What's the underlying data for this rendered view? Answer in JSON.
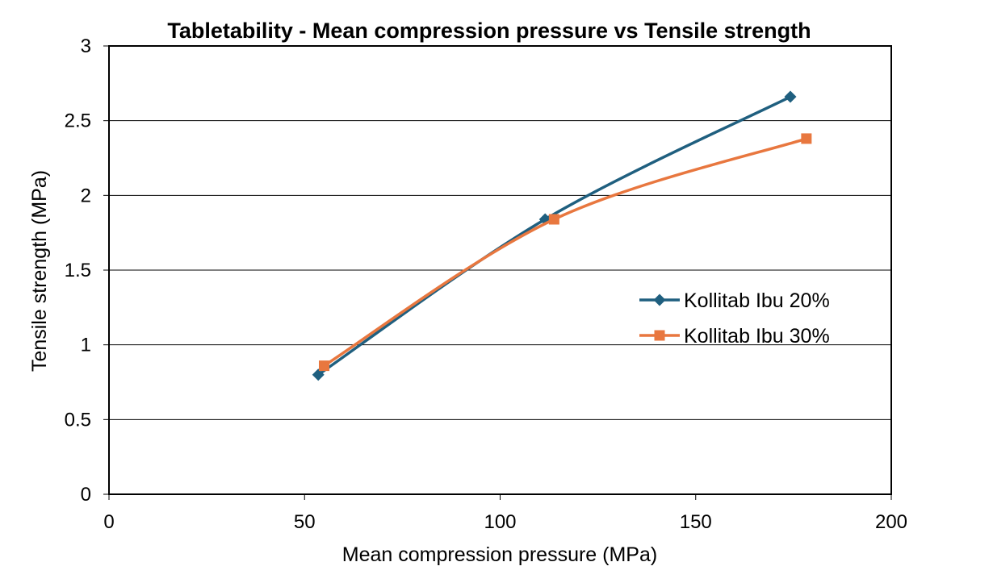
{
  "chart_data": {
    "type": "line",
    "title": "Tabletability - Mean compression pressure vs Tensile strength",
    "xlabel": "Mean compression pressure (MPa)",
    "ylabel": "Tensile strength (MPa)",
    "xlim": [
      0,
      200
    ],
    "ylim": [
      0,
      3
    ],
    "x_ticks": [
      "0",
      "50",
      "100",
      "150",
      "200"
    ],
    "y_ticks": [
      "0",
      "0.5",
      "1",
      "1.5",
      "2",
      "2.5",
      "3"
    ],
    "grid": "horizontal major gridlines",
    "legend_position": "right",
    "smooth_lines": true,
    "series": [
      {
        "name": "Kollitab Ibu 20%",
        "color": "#1f5f7f",
        "marker": "diamond",
        "points": [
          {
            "x": 53.5,
            "y": 0.8
          },
          {
            "x": 111.5,
            "y": 1.84
          },
          {
            "x": 174.2,
            "y": 2.66
          }
        ]
      },
      {
        "name": "Kollitab Ibu 30%",
        "color": "#e8773f",
        "marker": "square",
        "points": [
          {
            "x": 55.0,
            "y": 0.86
          },
          {
            "x": 113.8,
            "y": 1.84
          },
          {
            "x": 178.3,
            "y": 2.38
          }
        ]
      }
    ]
  }
}
